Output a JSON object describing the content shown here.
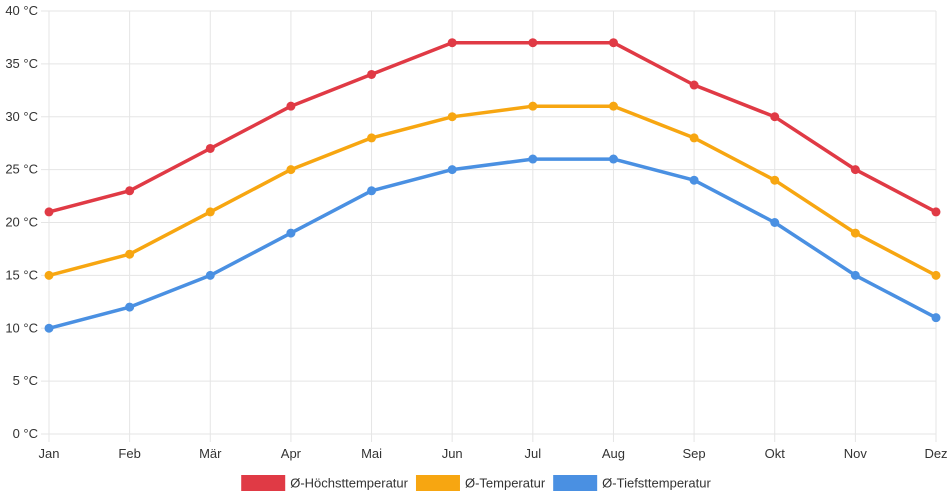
{
  "chart_data": {
    "type": "line",
    "title": "",
    "xlabel": "",
    "ylabel": "",
    "ylim": [
      0,
      40
    ],
    "y_ticks": [
      0,
      5,
      10,
      15,
      20,
      25,
      30,
      35,
      40
    ],
    "y_tick_labels": [
      "0 °C",
      "5 °C",
      "10 °C",
      "15 °C",
      "20 °C",
      "25 °C",
      "30 °C",
      "35 °C",
      "40 °C"
    ],
    "categories": [
      "Jan",
      "Feb",
      "Mär",
      "Apr",
      "Mai",
      "Jun",
      "Jul",
      "Aug",
      "Sep",
      "Okt",
      "Nov",
      "Dez"
    ],
    "grid": true,
    "legend_position": "bottom",
    "series": [
      {
        "name": "Ø-Höchsttemperatur",
        "color": "#e03a45",
        "values": [
          21,
          23,
          27,
          31,
          34,
          37,
          37,
          37,
          33,
          30,
          25,
          21
        ]
      },
      {
        "name": "Ø-Temperatur",
        "color": "#f7a611",
        "values": [
          15,
          17,
          21,
          25,
          28,
          30,
          31,
          31,
          28,
          24,
          19,
          15
        ]
      },
      {
        "name": "Ø-Tiefsttemperatur",
        "color": "#4a90e2",
        "values": [
          10,
          12,
          15,
          19,
          23,
          25,
          26,
          26,
          24,
          20,
          15,
          11
        ]
      }
    ]
  }
}
